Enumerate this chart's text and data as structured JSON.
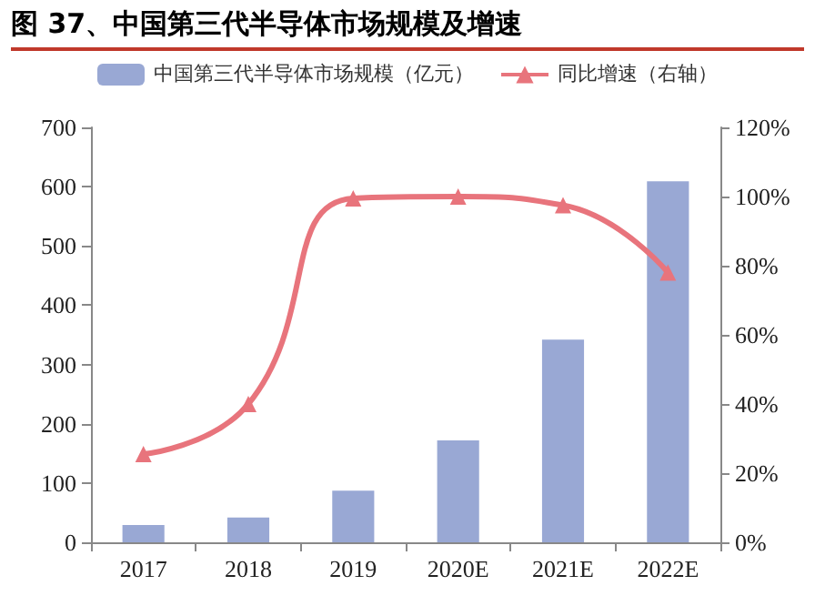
{
  "chart_data": {
    "type": "bar",
    "title": "图 37、中国第三代半导体市场规模及增速",
    "categories": [
      "2017",
      "2018",
      "2019",
      "2020E",
      "2021E",
      "2022E"
    ],
    "series": [
      {
        "name": "中国第三代半导体市场规模（亿元）",
        "color": "#99a8d4",
        "values": [
          29,
          42,
          87,
          172,
          342,
          609
        ]
      },
      {
        "name": "同比增速（右轴）",
        "type": "line",
        "axis": "y2",
        "color": "#e8747c",
        "marker": "triangle",
        "values": [
          25.5,
          40,
          99.5,
          100,
          97.5,
          78
        ]
      }
    ],
    "ylim": [
      0,
      700
    ],
    "yticks": [
      0,
      100,
      200,
      300,
      400,
      500,
      600,
      700
    ],
    "y2lim": [
      0,
      120
    ],
    "y2ticks": [
      {
        "value": 0,
        "label": "0%"
      },
      {
        "value": 20,
        "label": "20%"
      },
      {
        "value": 40,
        "label": "40%"
      },
      {
        "value": 60,
        "label": "60%"
      },
      {
        "value": 80,
        "label": "80%"
      },
      {
        "value": 100,
        "label": "100%"
      },
      {
        "value": 120,
        "label": "120%"
      }
    ],
    "grid": false,
    "legend": "top"
  }
}
